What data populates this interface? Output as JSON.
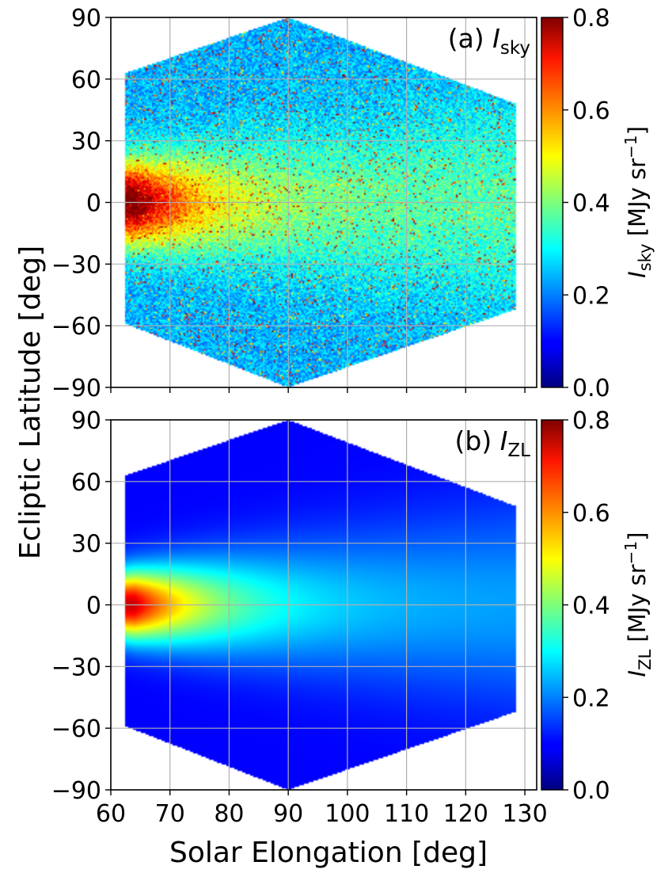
{
  "chart_data": [
    {
      "type": "scatter",
      "panel_label": "(a) ",
      "quantity_symbol": "I",
      "quantity_subscript": "sky",
      "xlim": [
        60,
        132
      ],
      "ylim": [
        -90,
        90
      ],
      "xticks": [
        60,
        70,
        80,
        90,
        100,
        110,
        120,
        130
      ],
      "yticks": [
        -90,
        -60,
        -30,
        0,
        30,
        60,
        90
      ],
      "ytick_labels": [
        "−90",
        "−60",
        "−30",
        "0",
        "30",
        "60",
        "90"
      ],
      "show_xtick_labels": false,
      "grid": true,
      "footprint_outline": [
        [
          62.5,
          63
        ],
        [
          90,
          90
        ],
        [
          128.5,
          48
        ],
        [
          128.5,
          -52
        ],
        [
          90,
          -90
        ],
        [
          62.5,
          -59
        ]
      ],
      "colorbar": {
        "cmap": "jet",
        "range": [
          0,
          0.8
        ],
        "ticks": [
          0.0,
          0.2,
          0.4,
          0.6,
          0.8
        ],
        "tick_labels": [
          "0.0",
          "0.2",
          "0.4",
          "0.6",
          "0.8"
        ],
        "label_symbol": "I",
        "label_subscript": "sky",
        "label_units": " [MJy sr",
        "label_exponent": "−1",
        "label_close": "]"
      },
      "model": {
        "background": 0.24,
        "ecliptic_peak": 0.48,
        "peak_longitude_deg": 64,
        "peak_decay_deg": 12,
        "band_base_width_deg": 14,
        "band_width_growth": 0.3,
        "noise": 0.07,
        "bright_source_fraction": 0.06,
        "bright_source_value": 0.8
      }
    },
    {
      "type": "scatter",
      "panel_label": "(b) ",
      "quantity_symbol": "I",
      "quantity_subscript": "ZL",
      "xlim": [
        60,
        132
      ],
      "ylim": [
        -90,
        90
      ],
      "xticks": [
        60,
        70,
        80,
        90,
        100,
        110,
        120,
        130
      ],
      "xtick_labels": [
        "60",
        "70",
        "80",
        "90",
        "100",
        "110",
        "120",
        "130"
      ],
      "yticks": [
        -90,
        -60,
        -30,
        0,
        30,
        60,
        90
      ],
      "ytick_labels": [
        "−90",
        "−60",
        "−30",
        "0",
        "30",
        "60",
        "90"
      ],
      "show_xtick_labels": true,
      "grid": true,
      "footprint_outline": [
        [
          62.5,
          63
        ],
        [
          90,
          90
        ],
        [
          128.5,
          48
        ],
        [
          128.5,
          -52
        ],
        [
          90,
          -90
        ],
        [
          62.5,
          -59
        ]
      ],
      "colorbar": {
        "cmap": "jet",
        "range": [
          0,
          0.8
        ],
        "ticks": [
          0.0,
          0.2,
          0.4,
          0.6,
          0.8
        ],
        "tick_labels": [
          "0.0",
          "0.2",
          "0.4",
          "0.6",
          "0.8"
        ],
        "label_symbol": "I",
        "label_subscript": "ZL",
        "label_units": " [MJy sr",
        "label_exponent": "−1",
        "label_close": "]"
      },
      "model": {
        "background": 0.1,
        "ecliptic_peak": 0.52,
        "peak_longitude_deg": 64,
        "peak_decay_deg": 14,
        "band_base_width_deg": 12,
        "band_width_growth": 0.32,
        "noise": 0.0,
        "bright_source_fraction": 0.0,
        "bright_source_value": 0.8
      }
    }
  ],
  "shared_axes": {
    "xlabel": "Solar Elongation [deg]",
    "ylabel": "Ecliptic Latitude [deg]"
  }
}
